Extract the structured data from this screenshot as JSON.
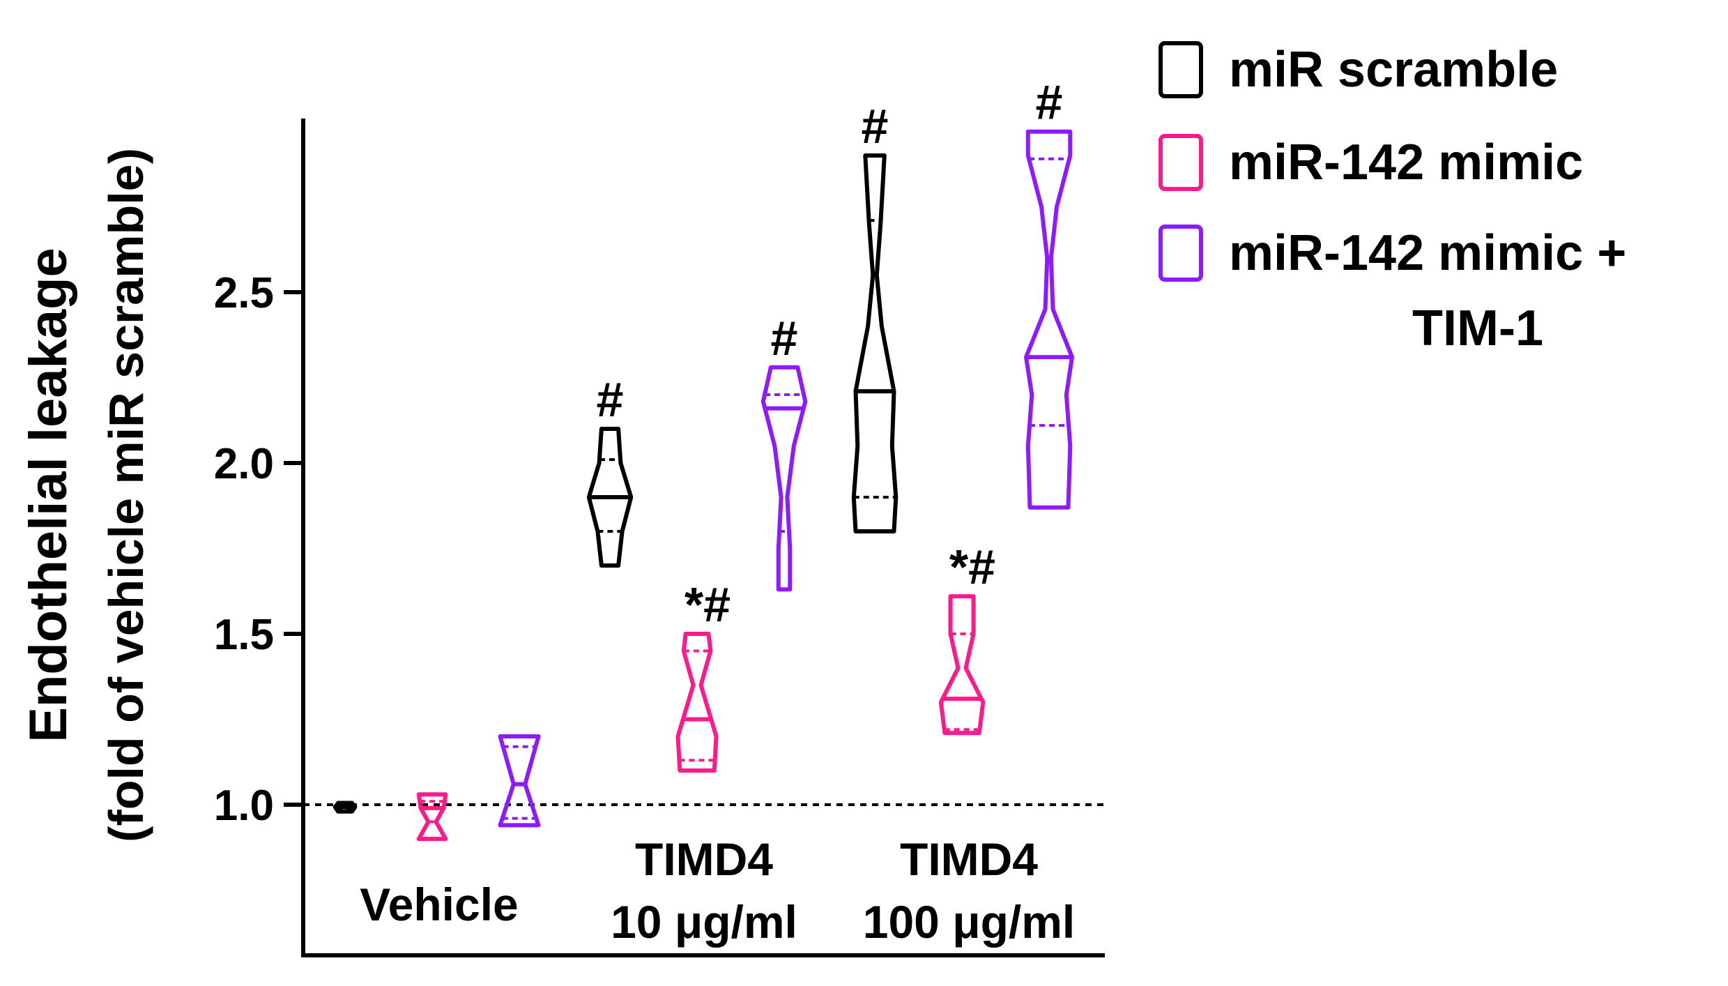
{
  "chart_data": {
    "type": "violin",
    "ylabel_line1": "Endothelial leakage",
    "ylabel_line2": "(fold of vehicle miR scramble)",
    "ylim": [
      0.7,
      3.2
    ],
    "yticks": [
      1.0,
      1.5,
      2.0,
      2.5
    ],
    "ytick_labels": [
      "1.0",
      "1.5",
      "2.0",
      "2.5"
    ],
    "reference_line": 1.0,
    "groups": [
      {
        "label_lines": [
          "Vehicle"
        ]
      },
      {
        "label_lines": [
          "TIMD4",
          "10 μg/ml"
        ]
      },
      {
        "label_lines": [
          "TIMD4",
          "100 μg/ml"
        ]
      }
    ],
    "series": [
      {
        "name": "miR scramble",
        "color": "#000000"
      },
      {
        "name": "miR-142 mimic",
        "color": "#ff1a8c"
      },
      {
        "name": "miR-142 mimic + TIM-1",
        "legend_lines": [
          "miR-142 mimic +",
          "TIM-1"
        ],
        "color": "#8f1aff"
      }
    ],
    "violins": [
      {
        "group": 0,
        "series": 0,
        "min": 0.98,
        "max": 1.005,
        "median": 0.993,
        "q1": 0.985,
        "q3": 1.0,
        "width_profile": [
          [
            0.98,
            0.18
          ],
          [
            0.993,
            0.26
          ],
          [
            1.005,
            0.18
          ]
        ],
        "annotation": ""
      },
      {
        "group": 0,
        "series": 1,
        "min": 0.9,
        "max": 1.03,
        "median": 0.99,
        "q1": 0.95,
        "q3": 1.01,
        "width_profile": [
          [
            0.9,
            0.35
          ],
          [
            0.95,
            0.1
          ],
          [
            0.99,
            0.3
          ],
          [
            1.03,
            0.35
          ]
        ],
        "annotation": ""
      },
      {
        "group": 0,
        "series": 2,
        "min": 0.94,
        "max": 1.2,
        "median": 1.06,
        "q1": 0.96,
        "q3": 1.17,
        "width_profile": [
          [
            0.94,
            0.5
          ],
          [
            1.06,
            0.15
          ],
          [
            1.2,
            0.5
          ]
        ],
        "annotation": ""
      },
      {
        "group": 1,
        "series": 0,
        "min": 1.7,
        "max": 2.1,
        "median": 1.9,
        "q1": 1.8,
        "q3": 2.01,
        "width_profile": [
          [
            1.7,
            0.22
          ],
          [
            1.8,
            0.32
          ],
          [
            1.9,
            0.55
          ],
          [
            2.0,
            0.28
          ],
          [
            2.1,
            0.22
          ]
        ],
        "annotation": "#"
      },
      {
        "group": 1,
        "series": 1,
        "min": 1.1,
        "max": 1.5,
        "median": 1.25,
        "q1": 1.13,
        "q3": 1.45,
        "width_profile": [
          [
            1.1,
            0.45
          ],
          [
            1.2,
            0.5
          ],
          [
            1.35,
            0.1
          ],
          [
            1.45,
            0.35
          ],
          [
            1.5,
            0.3
          ]
        ],
        "annotation": "*#"
      },
      {
        "group": 1,
        "series": 2,
        "min": 1.63,
        "max": 2.28,
        "median": 2.16,
        "q1": 1.8,
        "q3": 2.2,
        "width_profile": [
          [
            1.63,
            0.15
          ],
          [
            1.75,
            0.15
          ],
          [
            1.9,
            0.08
          ],
          [
            2.05,
            0.25
          ],
          [
            2.18,
            0.55
          ],
          [
            2.28,
            0.35
          ]
        ],
        "annotation": "#"
      },
      {
        "group": 2,
        "series": 0,
        "min": 1.8,
        "max": 2.9,
        "median": 2.21,
        "q1": 1.9,
        "q3": 2.71,
        "width_profile": [
          [
            1.8,
            0.5
          ],
          [
            1.9,
            0.55
          ],
          [
            2.05,
            0.45
          ],
          [
            2.21,
            0.5
          ],
          [
            2.4,
            0.18
          ],
          [
            2.55,
            0.05
          ],
          [
            2.7,
            0.15
          ],
          [
            2.9,
            0.25
          ]
        ],
        "annotation": "#"
      },
      {
        "group": 2,
        "series": 2,
        "min": 1.87,
        "max": 2.97,
        "median": 2.31,
        "q1": 2.11,
        "q3": 2.89,
        "width_profile": [
          [
            1.87,
            0.5
          ],
          [
            2.05,
            0.55
          ],
          [
            2.2,
            0.45
          ],
          [
            2.31,
            0.6
          ],
          [
            2.45,
            0.1
          ],
          [
            2.6,
            0.05
          ],
          [
            2.75,
            0.2
          ],
          [
            2.9,
            0.55
          ],
          [
            2.97,
            0.55
          ]
        ],
        "annotation": "#"
      },
      {
        "group": 2,
        "series": 1,
        "min": 1.21,
        "max": 1.61,
        "median": 1.31,
        "q1": 1.22,
        "q3": 1.5,
        "width_profile": [
          [
            1.21,
            0.45
          ],
          [
            1.3,
            0.55
          ],
          [
            1.4,
            0.1
          ],
          [
            1.5,
            0.3
          ],
          [
            1.61,
            0.3
          ]
        ],
        "annotation": "*#"
      }
    ]
  }
}
